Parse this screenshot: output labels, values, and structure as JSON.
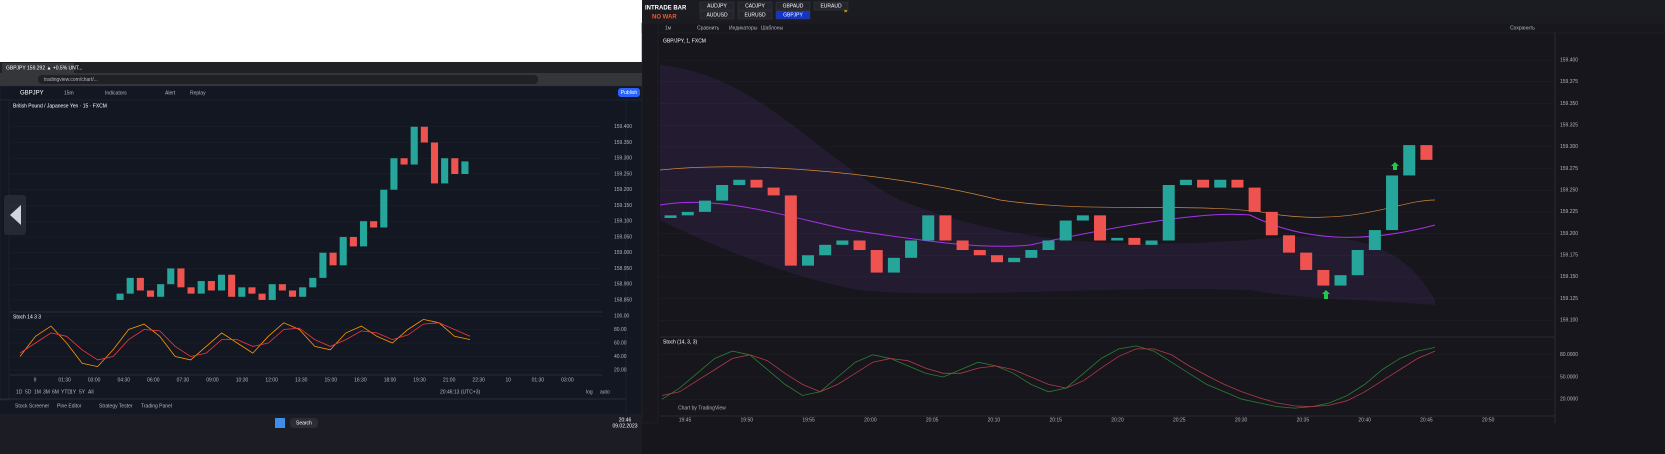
{
  "browser": {
    "tab": "GBPJPY 159.292 ▲ +0.5% UNT...",
    "url": "tradingview.com/chart/..."
  },
  "tv_toolbar": {
    "symbol": "GBPJPY",
    "interval": "15m",
    "indicators": "Indicators",
    "alert": "Alert",
    "replay": "Replay",
    "publish": "Publish"
  },
  "tv_bottom": {
    "ranges": [
      "1D",
      "5D",
      "1M",
      "3M",
      "6M",
      "YTD",
      "1Y",
      "5Y",
      "All"
    ],
    "clock": "20:46:13 (UTC+3)",
    "log": "log",
    "auto": "auto",
    "panels": [
      "Stock Screener",
      "Pine Editor",
      "Strategy Tester",
      "Trading Panel"
    ]
  },
  "taskbar": {
    "search": "Search",
    "time": "20:46",
    "date": "09.02.2023"
  },
  "intrade": {
    "logo": "INTRADE BAR",
    "slogan": "NO WAR",
    "pairs_top": [
      "AUDJPY",
      "CADJPY",
      "GBPAUD",
      "EURAUD"
    ],
    "pairs_bottom": [
      "AUDUSD",
      "EURUSD",
      "GBPJPY"
    ],
    "toolbar": [
      "1м",
      "Сравнить",
      "Индикаторы",
      "Шаблоны"
    ],
    "save": "Сохранить",
    "footer": "Chart by TradingView"
  },
  "chart_data": [
    {
      "type": "candlestick",
      "title": "British Pound / Japanese Yen · 15 · FXCM",
      "up_color": "#26a69a",
      "down_color": "#ef5350",
      "open": [
        158.85,
        158.87,
        158.92,
        158.88,
        158.86,
        158.9,
        158.95,
        158.89,
        158.87,
        158.91,
        158.88,
        158.93,
        158.86,
        158.89,
        158.87,
        158.85,
        158.9,
        158.88,
        158.86,
        158.89,
        158.92,
        159.0,
        158.96,
        159.05,
        159.02,
        159.1,
        159.08,
        159.2,
        159.3,
        159.28,
        159.4,
        159.35,
        159.22,
        159.3,
        159.25
      ],
      "close": [
        158.87,
        158.92,
        158.88,
        158.86,
        158.9,
        158.95,
        158.89,
        158.87,
        158.91,
        158.88,
        158.93,
        158.86,
        158.89,
        158.87,
        158.85,
        158.9,
        158.88,
        158.86,
        158.89,
        158.92,
        159.0,
        158.96,
        159.05,
        159.02,
        159.1,
        159.08,
        159.2,
        159.3,
        159.28,
        159.4,
        159.35,
        159.22,
        159.3,
        159.25,
        159.29
      ],
      "ylim": [
        158.818,
        159.485
      ],
      "yticks": [
        {
          "value": 159.4,
          "label": "159.400"
        },
        {
          "value": 159.35,
          "label": "159.350"
        },
        {
          "value": 159.3,
          "label": "159.300"
        },
        {
          "value": 159.25,
          "label": "159.250"
        },
        {
          "value": 159.2,
          "label": "159.200"
        },
        {
          "value": 159.15,
          "label": "159.150"
        },
        {
          "value": 159.1,
          "label": "159.100"
        },
        {
          "value": 159.05,
          "label": "159.050"
        },
        {
          "value": 159.0,
          "label": "159.000"
        },
        {
          "value": 158.95,
          "label": "158.950"
        },
        {
          "value": 158.9,
          "label": "158.900"
        },
        {
          "value": 158.85,
          "label": "158.850"
        }
      ],
      "xtick_labels": [
        "9",
        "01:30",
        "03:00",
        "04:30",
        "06:00",
        "07:30",
        "09:00",
        "10:30",
        "12:00",
        "13:30",
        "15:00",
        "16:30",
        "18:00",
        "19:30",
        "21:00",
        "22:30",
        "10",
        "01:30",
        "03:00"
      ]
    },
    {
      "type": "line",
      "title": "Stoch 14 3 3",
      "series": [
        {
          "name": "%K",
          "color": "#ff9800",
          "values": [
            40,
            70,
            85,
            60,
            30,
            25,
            50,
            80,
            88,
            70,
            40,
            35,
            55,
            75,
            60,
            45,
            70,
            90,
            80,
            55,
            50,
            75,
            85,
            70,
            60,
            80,
            95,
            90,
            70,
            65
          ]
        },
        {
          "name": "%D",
          "color": "#f23645",
          "values": [
            45,
            60,
            75,
            70,
            50,
            35,
            40,
            65,
            80,
            78,
            55,
            40,
            45,
            65,
            65,
            55,
            60,
            80,
            82,
            65,
            55,
            65,
            78,
            75,
            65,
            72,
            88,
            90,
            80,
            70
          ]
        }
      ],
      "ylim": [
        20,
        100
      ],
      "yticks": [
        {
          "value": 100,
          "label": "100.00"
        },
        {
          "value": 80,
          "label": "80.00"
        },
        {
          "value": 60,
          "label": "60.00"
        },
        {
          "value": 40,
          "label": "40.00"
        },
        {
          "value": 20,
          "label": "20.00"
        }
      ]
    },
    {
      "type": "candlestick",
      "title": "GBP/JPY, 1, FXCM",
      "up_color": "#26a69a",
      "down_color": "#ef5350",
      "open": [
        159.218,
        159.221,
        159.225,
        159.238,
        159.256,
        159.262,
        159.253,
        159.244,
        159.163,
        159.175,
        159.187,
        159.192,
        159.181,
        159.155,
        159.172,
        159.192,
        159.221,
        159.192,
        159.181,
        159.175,
        159.167,
        159.172,
        159.181,
        159.192,
        159.215,
        159.221,
        159.192,
        159.195,
        159.187,
        159.192,
        159.256,
        159.262,
        159.253,
        159.262,
        159.253,
        159.225,
        159.198,
        159.178,
        159.158,
        159.14,
        159.152,
        159.181,
        159.204,
        159.267,
        159.302
      ],
      "close": [
        159.221,
        159.225,
        159.238,
        159.256,
        159.262,
        159.253,
        159.244,
        159.163,
        159.175,
        159.187,
        159.192,
        159.181,
        159.155,
        159.172,
        159.192,
        159.221,
        159.192,
        159.181,
        159.175,
        159.167,
        159.172,
        159.181,
        159.192,
        159.215,
        159.221,
        159.192,
        159.195,
        159.187,
        159.192,
        159.256,
        159.262,
        159.253,
        159.262,
        159.253,
        159.225,
        159.198,
        159.178,
        159.158,
        159.14,
        159.152,
        159.181,
        159.204,
        159.267,
        159.302,
        159.285
      ],
      "ylim": [
        159.083,
        159.429
      ],
      "yticks": [
        {
          "value": 159.4,
          "label": "159.400"
        },
        {
          "value": 159.375,
          "label": "159.375"
        },
        {
          "value": 159.35,
          "label": "159.350"
        },
        {
          "value": 159.325,
          "label": "159.325"
        },
        {
          "value": 159.3,
          "label": "159.300"
        },
        {
          "value": 159.275,
          "label": "159.275"
        },
        {
          "value": 159.25,
          "label": "159.250"
        },
        {
          "value": 159.225,
          "label": "159.225"
        },
        {
          "value": 159.2,
          "label": "159.200"
        },
        {
          "value": 159.175,
          "label": "159.175"
        },
        {
          "value": 159.15,
          "label": "159.150"
        },
        {
          "value": 159.125,
          "label": "159.125"
        },
        {
          "value": 159.1,
          "label": "159.100"
        }
      ],
      "xtick_labels": [
        "19:45",
        "19:50",
        "19:55",
        "20:00",
        "20:05",
        "20:10",
        "20:15",
        "20:20",
        "20:25",
        "20:30",
        "20:35",
        "20:40",
        "20:45",
        "20:50"
      ]
    },
    {
      "type": "line",
      "title": "Stoch (14, 3, 3)",
      "series": [
        {
          "name": "%K",
          "color": "#2e7d32",
          "values": [
            20,
            35,
            55,
            75,
            85,
            80,
            60,
            40,
            25,
            30,
            50,
            70,
            80,
            75,
            65,
            55,
            50,
            60,
            70,
            65,
            55,
            40,
            30,
            35,
            55,
            75,
            88,
            92,
            85,
            70,
            55,
            40,
            30,
            20,
            15,
            10,
            8,
            10,
            15,
            25,
            40,
            60,
            75,
            85,
            90
          ]
        },
        {
          "name": "%D",
          "color": "#b23a48",
          "values": [
            25,
            30,
            45,
            60,
            75,
            80,
            72,
            55,
            40,
            30,
            40,
            55,
            70,
            75,
            72,
            62,
            55,
            55,
            62,
            65,
            60,
            50,
            40,
            35,
            45,
            62,
            78,
            88,
            88,
            80,
            65,
            52,
            40,
            30,
            22,
            15,
            11,
            10,
            12,
            18,
            30,
            45,
            60,
            75,
            85
          ]
        }
      ],
      "ylim": [
        0,
        100
      ],
      "yticks": [
        {
          "value": 80,
          "label": "80.0000"
        },
        {
          "value": 50,
          "label": "50.0000"
        },
        {
          "value": 20,
          "label": "20.0000"
        }
      ]
    }
  ]
}
